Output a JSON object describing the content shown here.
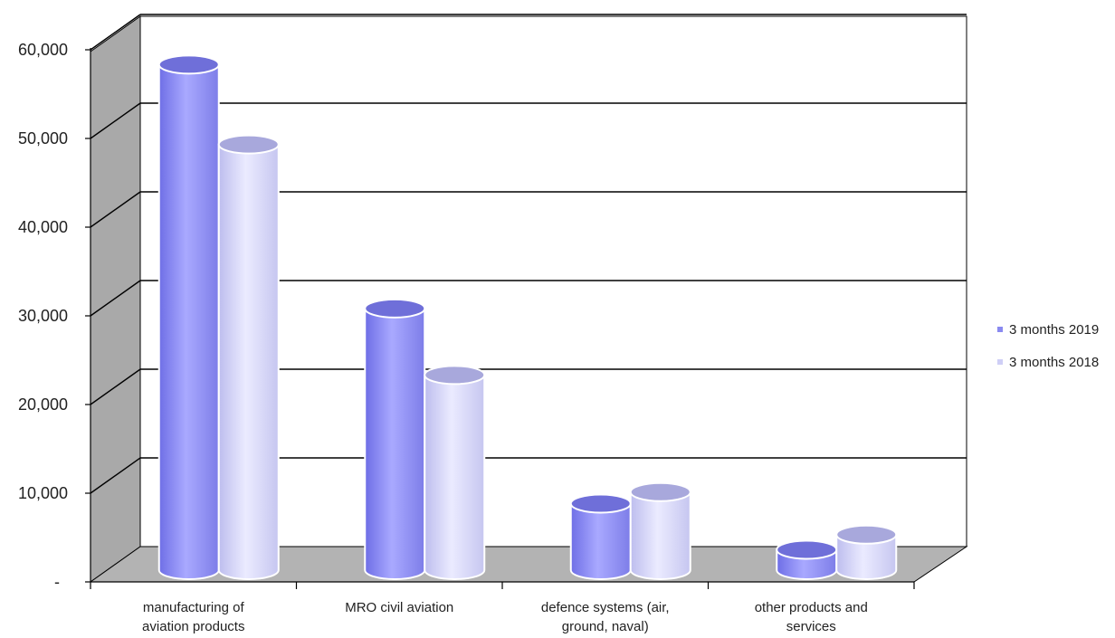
{
  "chart_data": {
    "type": "bar",
    "style": "3d-cylinder",
    "categories": [
      [
        "manufacturing of",
        "aviation products"
      ],
      [
        "MRO civil aviation"
      ],
      [
        "defence systems (air,",
        "ground, naval)"
      ],
      [
        "other products and",
        "services"
      ]
    ],
    "series": [
      {
        "name": "3 months 2019",
        "values": [
          57000,
          29500,
          7500,
          2300
        ],
        "color": "#8a8af0"
      },
      {
        "name": "3 months 2018",
        "values": [
          48000,
          22000,
          8800,
          4000
        ],
        "color": "#cfcff6"
      }
    ],
    "ylim": [
      0,
      60000
    ],
    "yticks": [
      0,
      10000,
      20000,
      30000,
      40000,
      50000,
      60000
    ],
    "ytick_labels": [
      "-",
      "10,000",
      "20,000",
      "30,000",
      "40,000",
      "50,000",
      "60,000"
    ],
    "grid": true,
    "legend_position": "right",
    "colors": {
      "wall": "#ffffff",
      "side_wall": "#a9a9a9",
      "floor": "#b3b3b3",
      "gridline": "#000000"
    }
  }
}
